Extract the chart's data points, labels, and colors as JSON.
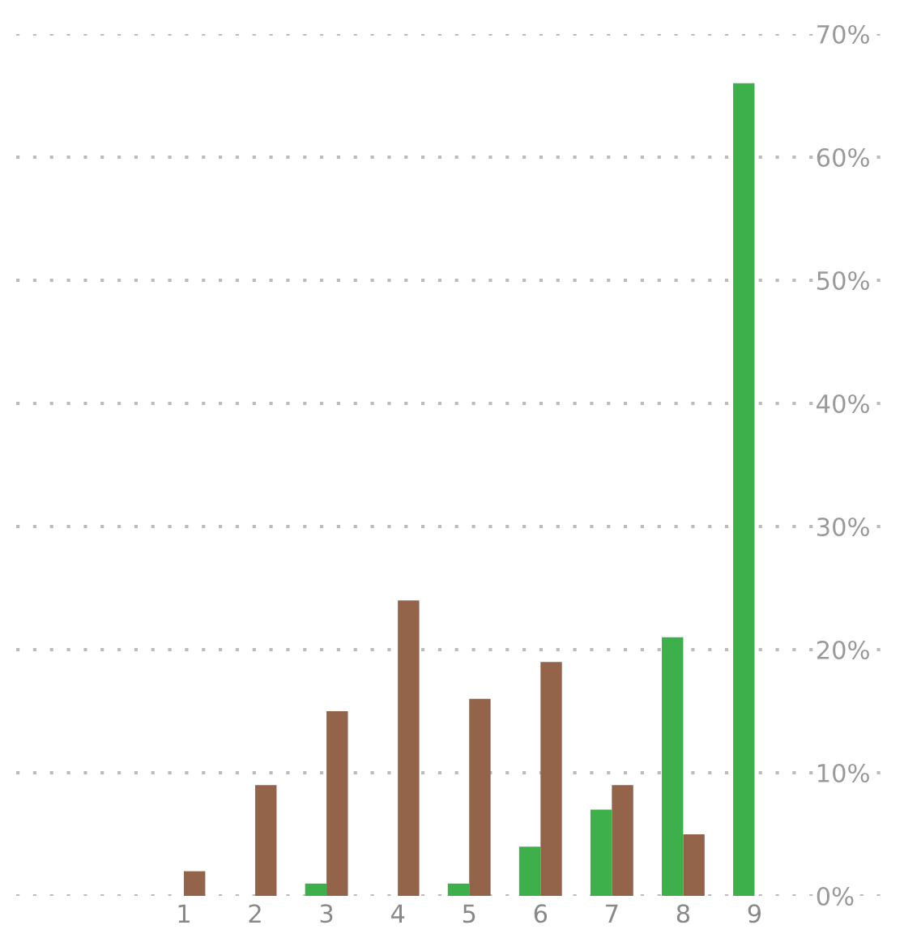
{
  "chart_data": {
    "type": "bar",
    "categories": [
      "1",
      "2",
      "3",
      "4",
      "5",
      "6",
      "7",
      "8",
      "9"
    ],
    "series": [
      {
        "color": "#3db04b",
        "values": [
          0,
          0,
          1,
          0,
          1,
          4,
          7,
          21,
          66
        ]
      },
      {
        "color": "#93634a",
        "values": [
          2,
          9,
          15,
          24,
          16,
          19,
          9,
          5,
          0
        ]
      }
    ],
    "ylim": [
      0,
      70
    ],
    "yticks": [
      {
        "value": 0,
        "label": "0%"
      },
      {
        "value": 10,
        "label": "10%"
      },
      {
        "value": 20,
        "label": "20%"
      },
      {
        "value": 30,
        "label": "30%"
      },
      {
        "value": 40,
        "label": "40%"
      },
      {
        "value": 50,
        "label": "50%"
      },
      {
        "value": 60,
        "label": "60%"
      },
      {
        "value": 70,
        "label": "70%"
      }
    ],
    "grid": "y",
    "line_style": "dotted"
  }
}
